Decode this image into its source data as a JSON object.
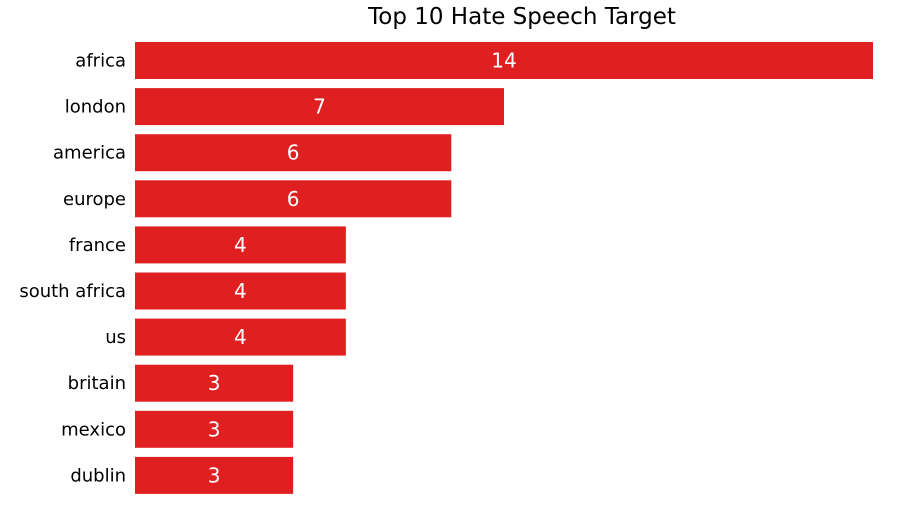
{
  "chart_data": {
    "type": "bar",
    "orientation": "horizontal",
    "title": "Top 10 Hate Speech Target",
    "xlabel": "",
    "ylabel": "",
    "categories": [
      "africa",
      "london",
      "america",
      "europe",
      "france",
      "south africa",
      "us",
      "britain",
      "mexico",
      "dublin"
    ],
    "values": [
      14,
      7,
      6,
      6,
      4,
      4,
      4,
      3,
      3,
      3
    ],
    "xlim": [
      0,
      14
    ],
    "grid": false,
    "show_x_axis": false,
    "data_labels": true,
    "bar_color": "#e02020",
    "label_color": "#ffffff"
  }
}
